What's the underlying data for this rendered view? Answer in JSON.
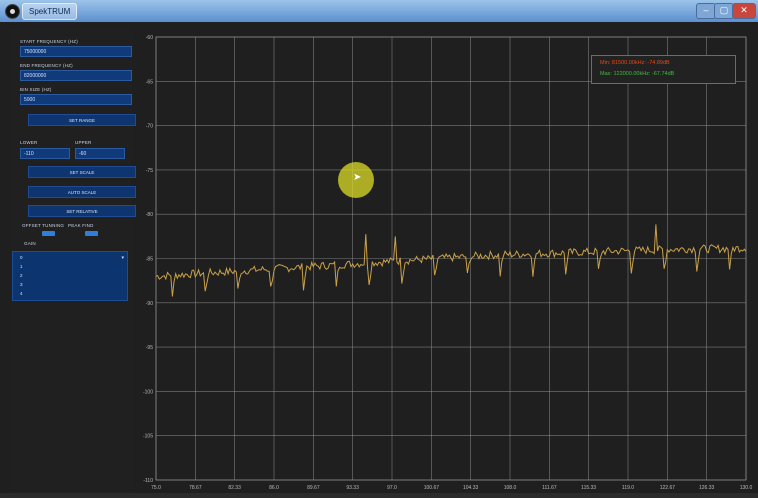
{
  "window": {
    "title": "SpekTRUM",
    "min": "–",
    "max": "▢",
    "close": "✕"
  },
  "sidebar": {
    "start_freq_label": "START FREQUENCY (HZ)",
    "start_freq_value": "75000000",
    "end_freq_label": "END FREQUENCY (HZ)",
    "end_freq_value": "82000000",
    "bin_size_label": "BIN SIZE (HZ)",
    "bin_size_value": "5000",
    "set_range": "SET RANGE",
    "lower_label": "LOWER",
    "upper_label": "UPPER",
    "lower_value": "-110",
    "upper_value": "-60",
    "set_scale": "SET SCALE",
    "auto_scale": "AUTO SCALE",
    "set_relative": "SET RELATIVE",
    "offset_label": "OFFSET TUNNING",
    "peak_label": "PEAK FIND",
    "gain_label": "GAIN",
    "series_items": [
      "0",
      "1",
      "2",
      "3",
      "4"
    ]
  },
  "legend": {
    "min": "Min: 81500.00kHz: -74.89dB",
    "max": "Max: 122000.00kHz: -67.74dB"
  },
  "colors": {
    "trace": "#c9a14a",
    "grid": "#9a9a9a",
    "legend_border": "#d4461e",
    "min": "#e24a1a",
    "max": "#3fbf3a"
  },
  "chart_data": {
    "type": "line",
    "yticks": [
      "-60",
      "-65",
      "-70",
      "-75",
      "-80",
      "-85",
      "-90",
      "-95",
      "-100",
      "-105",
      "-110"
    ],
    "xticks": [
      "75.0",
      "78.67",
      "82.33",
      "86.0",
      "89.67",
      "93.33",
      "97.0",
      "100.67",
      "104.33",
      "108.0",
      "111.67",
      "115.33",
      "119.0",
      "122.67",
      "126.33",
      "130.0"
    ],
    "ylim": [
      -110,
      -60
    ],
    "xlim": [
      75,
      130
    ],
    "grid": true,
    "series": [
      {
        "values": [
          -87.0,
          -86.8,
          -86.6,
          -86.4,
          -86.2,
          -86.0,
          -85.8,
          -85.6,
          -85.4,
          -85.2,
          -85.0,
          -84.8,
          -84.6,
          -84.5,
          -84.4,
          -84.3,
          -84.2,
          -84.1,
          -84.0,
          -83.9,
          -83.9,
          -83.8
        ]
      }
    ]
  }
}
